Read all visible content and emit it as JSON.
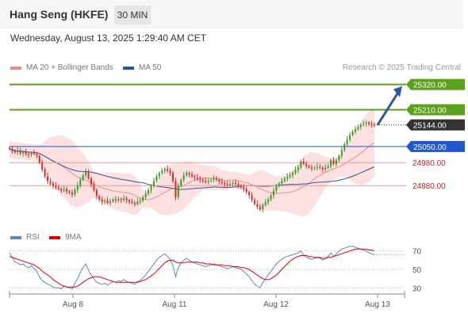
{
  "header": {
    "title": "Hang Seng (HKFE)",
    "interval": "30 MIN"
  },
  "datetime": "Wednesday, August 13, 2025 1:29:40 AM CET",
  "legend_main": [
    {
      "label": "MA 20 + Bollinger Bands",
      "color": "#f08a8a"
    },
    {
      "label": "MA 50",
      "color": "#2a5599"
    }
  ],
  "credit": "Research © 2025 Trading Central",
  "legend_rsi": [
    {
      "label": "RSI",
      "color": "#5b87c8"
    },
    {
      "label": "9MA",
      "color": "#dd0000"
    }
  ],
  "colors": {
    "resistance": "#5aa21a",
    "current": "#333333",
    "pivot": "#2255cc",
    "support": "#cc2222",
    "candle_up": "#3f9a2a",
    "candle_down": "#d43030",
    "band": "#fde0e0"
  },
  "chart_data": [
    {
      "type": "candlestick",
      "x_ticks": [
        "Aug 8",
        "Aug 11",
        "Aug 12",
        "Aug 13"
      ],
      "ylim": [
        24705,
        25360
      ],
      "levels": [
        {
          "value": 25320.0,
          "label": "25320.00",
          "kind": "resistance"
        },
        {
          "value": 25210.0,
          "label": "25210.00",
          "kind": "resistance"
        },
        {
          "value": 25144.0,
          "label": "25144.00",
          "kind": "current"
        },
        {
          "value": 25050.0,
          "label": "25050.00",
          "kind": "pivot"
        },
        {
          "value": 24980.0,
          "label": "24980.00",
          "kind": "support"
        },
        {
          "value": 24880.0,
          "label": "24880.00",
          "kind": "support"
        }
      ],
      "closes": [
        25040,
        25030,
        25025,
        25032,
        25020,
        25026,
        25018,
        25015,
        25022,
        25018,
        25010,
        24980,
        24950,
        24920,
        24900,
        24890,
        24880,
        24872,
        24866,
        24858,
        24865,
        24855,
        24850,
        24842,
        24862,
        24880,
        24905,
        24925,
        24940,
        24912,
        24885,
        24860,
        24835,
        24820,
        24810,
        24815,
        24805,
        24812,
        24820,
        24815,
        24822,
        24818,
        24825,
        24817,
        24810,
        24805,
        24800,
        24810,
        24815,
        24830,
        24845,
        24860,
        24880,
        24900,
        24920,
        24935,
        24945,
        24952,
        24945,
        24935,
        24900,
        24830,
        24880,
        24905,
        24925,
        24935,
        24928,
        24920,
        24915,
        24910,
        24905,
        24900,
        24895,
        24900,
        24905,
        24912,
        24906,
        24898,
        24892,
        24886,
        24882,
        24888,
        24892,
        24887,
        24880,
        24874,
        24866,
        24852,
        24838,
        24818,
        24800,
        24788,
        24776,
        24796,
        24808,
        24820,
        24838,
        24858,
        24878,
        24890,
        24900,
        24910,
        24918,
        24925,
        24935,
        24948,
        24960,
        24985,
        24975,
        24965,
        24960,
        24955,
        24958,
        24962,
        24958,
        24950,
        24958,
        24965,
        24990,
        24975,
        24990,
        25010,
        25035,
        25060,
        25080,
        25100,
        25115,
        25125,
        25135,
        25145,
        25150,
        25155,
        25148,
        25146,
        25144
      ]
    },
    {
      "type": "line",
      "name": "RSI",
      "y_ticks": [
        70,
        50,
        30
      ],
      "ylim": [
        20,
        80
      ],
      "series": [
        {
          "name": "RSI",
          "values": [
            68,
            63,
            58,
            57,
            55,
            56,
            53,
            52,
            54,
            51,
            48,
            42,
            38,
            36,
            34,
            33,
            31,
            30,
            30,
            29,
            32,
            31,
            30,
            29,
            35,
            40,
            47,
            52,
            56,
            49,
            44,
            40,
            36,
            35,
            34,
            35,
            33,
            35,
            37,
            36,
            38,
            37,
            39,
            37,
            36,
            35,
            34,
            37,
            38,
            41,
            44,
            48,
            52,
            56,
            60,
            63,
            65,
            67,
            64,
            61,
            54,
            42,
            52,
            57,
            60,
            62,
            60,
            58,
            57,
            56,
            55,
            54,
            53,
            54,
            55,
            56,
            55,
            54,
            53,
            52,
            51,
            52,
            53,
            52,
            51,
            50,
            48,
            45,
            42,
            38,
            34,
            32,
            30,
            36,
            40,
            44,
            48,
            52,
            56,
            59,
            61,
            63,
            64,
            65,
            66,
            67,
            68,
            70,
            66,
            63,
            62,
            61,
            62,
            63,
            62,
            60,
            62,
            64,
            68,
            64,
            67,
            70,
            72,
            73,
            74,
            75,
            75,
            74,
            73,
            72,
            71,
            70,
            68,
            67,
            66
          ]
        },
        {
          "name": "9MA",
          "values": [
            64,
            63,
            62,
            61,
            60,
            59,
            58,
            57,
            56,
            55,
            53,
            51,
            48,
            46,
            44,
            42,
            39,
            37,
            35,
            33,
            32,
            31,
            31,
            31,
            31,
            32,
            34,
            36,
            38,
            40,
            41,
            42,
            42,
            42,
            41,
            40,
            39,
            38,
            37,
            36,
            36,
            36,
            36,
            36,
            36,
            36,
            36,
            36,
            37,
            38,
            39,
            41,
            43,
            45,
            48,
            51,
            54,
            57,
            59,
            60,
            60,
            58,
            57,
            57,
            57,
            58,
            58,
            58,
            58,
            58,
            57,
            57,
            56,
            56,
            56,
            55,
            55,
            55,
            55,
            54,
            54,
            54,
            53,
            53,
            53,
            52,
            52,
            51,
            50,
            48,
            46,
            44,
            42,
            40,
            39,
            39,
            40,
            42,
            44,
            47,
            50,
            53,
            56,
            59,
            61,
            63,
            64,
            65,
            65,
            65,
            64,
            64,
            63,
            63,
            63,
            62,
            62,
            63,
            63,
            64,
            65,
            66,
            67,
            68,
            69,
            70,
            71,
            72,
            72,
            72,
            72,
            72,
            71,
            71,
            70
          ]
        }
      ]
    }
  ]
}
